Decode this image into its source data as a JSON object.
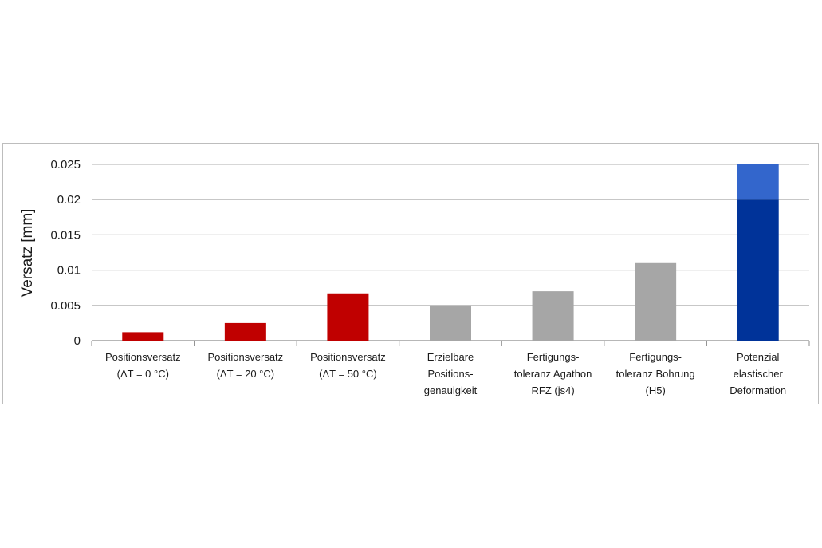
{
  "chart_data": {
    "type": "bar",
    "title": "",
    "xlabel": "",
    "ylabel": "Versatz [mm]",
    "ylim": [
      0,
      0.025
    ],
    "yticks": [
      0,
      0.005,
      0.01,
      0.015,
      0.02,
      0.025
    ],
    "ytick_labels": [
      "0",
      "0.005",
      "0.01",
      "0.015",
      "0.02",
      "0.025"
    ],
    "grid": true,
    "legend": "none",
    "categories": [
      [
        "Positionsversatz",
        "(ΔT = 0 °C)"
      ],
      [
        "Positionsversatz",
        "(ΔT = 20 °C)"
      ],
      [
        "Positionsversatz",
        "(ΔT = 50 °C)"
      ],
      [
        "Erzielbare",
        "Positions-",
        "genauigkeit"
      ],
      [
        "Fertigungs-",
        "toleranz Agathon",
        "RFZ (js4)"
      ],
      [
        "Fertigungs-",
        "toleranz Bohrung",
        "(H5)"
      ],
      [
        "Potenzial",
        "elastischer",
        "Deformation"
      ]
    ],
    "values": [
      0.0012,
      0.0025,
      0.0067,
      0.005,
      0.007,
      0.011,
      0.02
    ],
    "stacked_extra": [
      0,
      0,
      0,
      0,
      0,
      0,
      0.005
    ],
    "colors": [
      "#c00000",
      "#c00000",
      "#c00000",
      "#a6a6a6",
      "#a6a6a6",
      "#a6a6a6",
      "#003399"
    ],
    "extra_color": "#3366cc"
  }
}
